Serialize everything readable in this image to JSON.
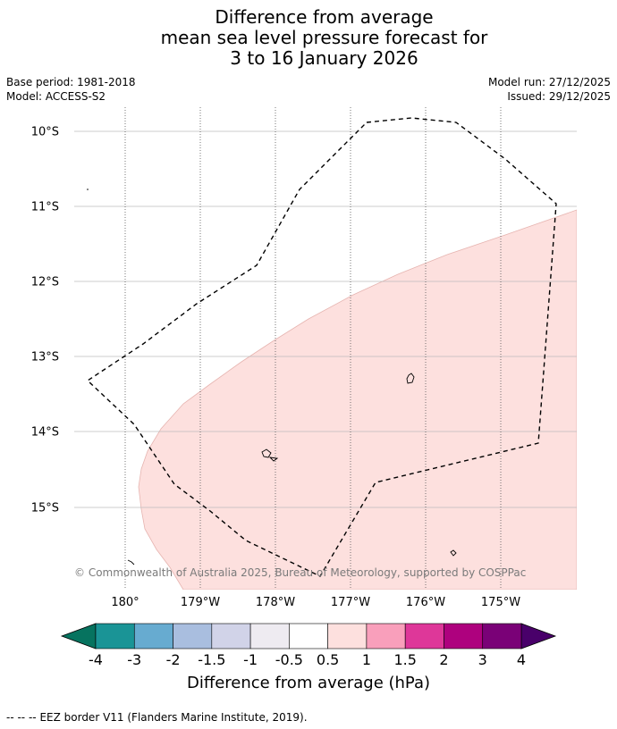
{
  "title": {
    "line1": "Difference from average",
    "line2": "mean sea level pressure forecast for",
    "line3": "3 to 16 January 2026"
  },
  "meta": {
    "base_period": "Base period: 1981-2018",
    "model": "Model: ACCESS-S2",
    "model_run": "Model run: 27/12/2025",
    "issued": "Issued: 29/12/2025"
  },
  "map": {
    "lat_labels": [
      "10°S",
      "11°S",
      "12°S",
      "13°S",
      "14°S",
      "15°S"
    ],
    "lon_labels": [
      "180°",
      "179°W",
      "178°W",
      "177°W",
      "176°W",
      "175°W"
    ],
    "copyright": "© Commonwealth of Australia 2025, Bureau of Meteorology, supported by COSPPac",
    "anomaly_fill_color": "#fde0de",
    "anomaly_category": "0.5 to 1"
  },
  "colorbar": {
    "ticks": [
      "-4",
      "-3",
      "-2",
      "-1.5",
      "-1",
      "-0.5",
      "0.5",
      "1",
      "1.5",
      "2",
      "3",
      "4"
    ],
    "colors": [
      "#1a9496",
      "#67abd0",
      "#a9bedf",
      "#d1d3e8",
      "#eeebf1",
      "#ffffff",
      "#fde0de",
      "#f99fbb",
      "#de3799",
      "#ae017e",
      "#7a0177"
    ],
    "under_color": "#06735f",
    "over_color": "#49006a",
    "label": "Difference from average (hPa)"
  },
  "footer": {
    "legend_marker": "--  --  --",
    "text": "EEZ border V11 (Flanders Marine Institute, 2019)."
  }
}
